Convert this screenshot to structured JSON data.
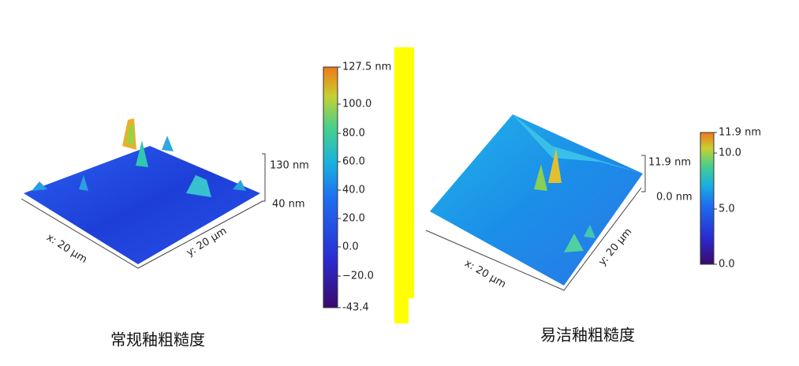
{
  "left": {
    "x_axis": "x: 20 µm",
    "y_axis": "y: 20 µm",
    "z_top": "130 nm",
    "z_bottom": "40 nm",
    "colorbar": [
      "127.5 nm",
      "100.0",
      "80.0",
      "60.0",
      "40.0",
      "20.0",
      "0.0",
      "−20.0",
      "-43.4"
    ],
    "caption": "常规釉粗糙度"
  },
  "right": {
    "x_axis": "x: 20 µm",
    "y_axis": "y: 20 µm",
    "z_top": "11.9 nm",
    "z_bottom": "0.0 nm",
    "colorbar": [
      "11.9 nm",
      "10.0",
      "5.0",
      "0.0"
    ],
    "caption": "易洁釉粗糙度"
  }
}
